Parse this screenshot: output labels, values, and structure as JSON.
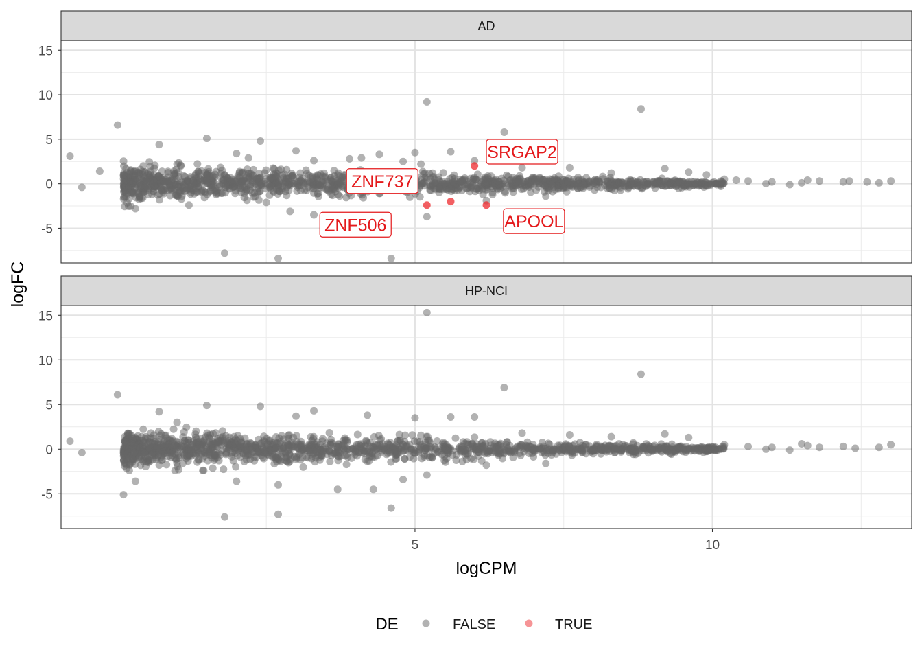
{
  "chart_data": {
    "type": "scatter",
    "title": "",
    "xlabel": "logCPM",
    "ylabel": "logFC",
    "xlim": [
      -0.95,
      13.35
    ],
    "ylim": [
      -8.9,
      16.1
    ],
    "x_ticks": [
      5,
      10
    ],
    "x_tick_labels": [
      "5",
      "10"
    ],
    "x_minor_ticks": [
      2.5,
      7.5,
      12.5
    ],
    "y_ticks": [
      -5,
      0,
      5,
      10,
      15
    ],
    "y_tick_labels": [
      "-5",
      "0",
      "5",
      "10",
      "15"
    ],
    "y_minor_ticks": [
      -7.5,
      -2.5,
      2.5,
      7.5,
      12.5
    ],
    "grid": true,
    "legend": {
      "title": "DE",
      "position": "bottom",
      "entries": [
        {
          "label": "FALSE",
          "color": "#666666"
        },
        {
          "label": "TRUE",
          "color": "#ee2a2e"
        }
      ]
    },
    "colors": {
      "FALSE": "#666666",
      "TRUE": "#ee2a2e",
      "label_text": "#e41a1c"
    },
    "panels": [
      {
        "name": "AD",
        "bulk_band": {
          "x_range": [
            0.1,
            10.2
          ],
          "logFC_halfwidth_start": 1.7,
          "logFC_halfwidth_end": 0.25
        },
        "points_false": [
          [
            -0.8,
            3.1
          ],
          [
            -0.6,
            -0.4
          ],
          [
            -0.3,
            1.4
          ],
          [
            0.0,
            6.6
          ],
          [
            0.1,
            1.0
          ],
          [
            0.3,
            -2.8
          ],
          [
            0.7,
            4.4
          ],
          [
            1.0,
            2.2
          ],
          [
            1.5,
            5.1
          ],
          [
            1.2,
            -2.4
          ],
          [
            1.8,
            -7.8
          ],
          [
            2.0,
            3.4
          ],
          [
            2.2,
            2.9
          ],
          [
            2.4,
            4.8
          ],
          [
            2.5,
            -2.1
          ],
          [
            2.7,
            -8.4
          ],
          [
            2.9,
            -3.1
          ],
          [
            3.0,
            3.7
          ],
          [
            3.3,
            2.6
          ],
          [
            3.3,
            -3.5
          ],
          [
            3.6,
            -4.3
          ],
          [
            3.7,
            -4.8
          ],
          [
            3.9,
            2.8
          ],
          [
            4.1,
            2.9
          ],
          [
            4.2,
            -3.8
          ],
          [
            4.4,
            3.3
          ],
          [
            4.6,
            -8.4
          ],
          [
            4.8,
            2.5
          ],
          [
            5.0,
            3.5
          ],
          [
            5.1,
            2.2
          ],
          [
            5.2,
            9.2
          ],
          [
            5.2,
            -3.7
          ],
          [
            5.6,
            3.6
          ],
          [
            6.0,
            2.6
          ],
          [
            6.5,
            5.8
          ],
          [
            6.2,
            -1.9
          ],
          [
            6.8,
            1.8
          ],
          [
            7.2,
            -1.4
          ],
          [
            7.6,
            1.8
          ],
          [
            8.3,
            1.2
          ],
          [
            8.8,
            8.4
          ],
          [
            9.2,
            1.7
          ],
          [
            9.6,
            1.3
          ],
          [
            9.9,
            1.0
          ],
          [
            10.2,
            0.5
          ],
          [
            10.6,
            0.3
          ],
          [
            11.0,
            0.2
          ],
          [
            11.3,
            -0.1
          ],
          [
            11.6,
            0.4
          ],
          [
            11.8,
            0.3
          ],
          [
            12.2,
            0.2
          ],
          [
            12.3,
            0.3
          ],
          [
            12.8,
            0.1
          ],
          [
            13.0,
            0.3
          ],
          [
            11.5,
            0.1
          ],
          [
            10.9,
            0.0
          ],
          [
            10.4,
            0.4
          ],
          [
            12.6,
            0.2
          ]
        ],
        "points_true": [
          [
            5.2,
            -2.4
          ],
          [
            5.6,
            -2.0
          ],
          [
            6.2,
            -2.4
          ],
          [
            6.0,
            2.0
          ]
        ],
        "labels": [
          {
            "text": "SRGAP2",
            "x": 6.0,
            "y": 2.0,
            "lx": 6.8,
            "ly": 3.6
          },
          {
            "text": "ZNF737",
            "x": 5.6,
            "y": -2.0,
            "lx": 4.45,
            "ly": 0.3
          },
          {
            "text": "ZNF506",
            "x": 5.2,
            "y": -2.4,
            "lx": 4.0,
            "ly": -4.6
          },
          {
            "text": "APOOL",
            "x": 6.2,
            "y": -2.4,
            "lx": 7.0,
            "ly": -4.2
          }
        ]
      },
      {
        "name": "HP-NCI",
        "bulk_band": {
          "x_range": [
            0.1,
            10.2
          ],
          "logFC_halfwidth_start": 1.8,
          "logFC_halfwidth_end": 0.25
        },
        "points_false": [
          [
            -0.8,
            0.9
          ],
          [
            -0.6,
            -0.4
          ],
          [
            0.0,
            6.1
          ],
          [
            0.1,
            -5.1
          ],
          [
            0.3,
            -3.6
          ],
          [
            0.7,
            4.2
          ],
          [
            1.0,
            3.0
          ],
          [
            1.5,
            4.9
          ],
          [
            1.8,
            -7.6
          ],
          [
            2.0,
            -3.6
          ],
          [
            2.4,
            4.8
          ],
          [
            2.7,
            -7.3
          ],
          [
            2.7,
            -4.0
          ],
          [
            3.0,
            3.7
          ],
          [
            3.3,
            4.3
          ],
          [
            3.7,
            -4.5
          ],
          [
            4.2,
            3.8
          ],
          [
            4.3,
            -4.5
          ],
          [
            4.6,
            -6.6
          ],
          [
            4.8,
            -3.4
          ],
          [
            5.0,
            3.5
          ],
          [
            5.2,
            15.3
          ],
          [
            5.2,
            -2.9
          ],
          [
            5.6,
            3.6
          ],
          [
            6.0,
            3.6
          ],
          [
            6.5,
            6.9
          ],
          [
            6.2,
            -1.8
          ],
          [
            6.8,
            1.8
          ],
          [
            7.2,
            -1.6
          ],
          [
            7.6,
            1.6
          ],
          [
            8.3,
            1.4
          ],
          [
            8.8,
            8.4
          ],
          [
            9.2,
            1.7
          ],
          [
            9.6,
            1.3
          ],
          [
            10.2,
            0.5
          ],
          [
            10.6,
            0.3
          ],
          [
            11.0,
            0.2
          ],
          [
            11.3,
            -0.1
          ],
          [
            11.6,
            0.4
          ],
          [
            11.8,
            0.2
          ],
          [
            12.2,
            0.3
          ],
          [
            12.8,
            0.2
          ],
          [
            13.0,
            0.5
          ],
          [
            11.5,
            0.6
          ],
          [
            10.9,
            0.0
          ],
          [
            12.4,
            0.1
          ]
        ],
        "points_true": [],
        "labels": []
      }
    ]
  }
}
